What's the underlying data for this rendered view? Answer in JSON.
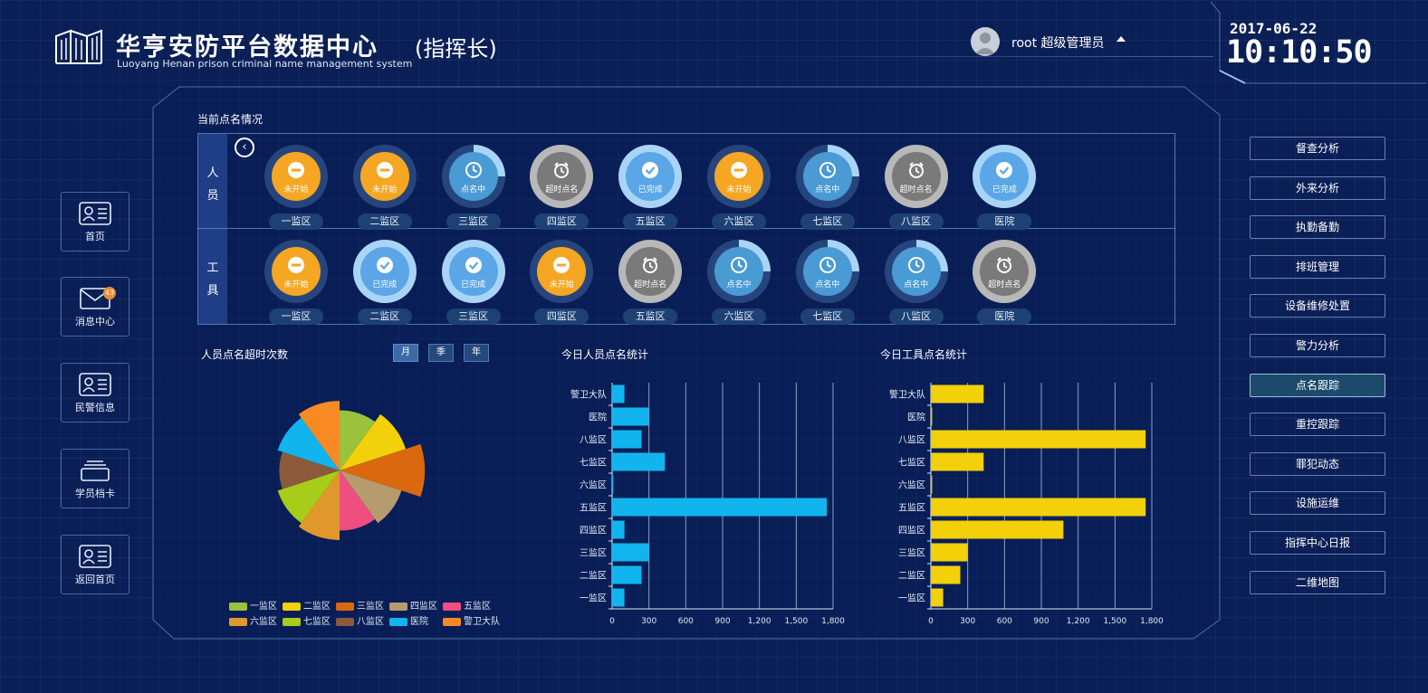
{
  "header": {
    "title": "华亨安防平台数据中心",
    "role": "(指挥长)",
    "subtitle": "Luoyang Henan prison criminal name management system",
    "user": "root 超级管理员",
    "date": "2017-06-22",
    "time": "10:10:50"
  },
  "nav": [
    {
      "label": "首页",
      "icon": "id-card-icon"
    },
    {
      "label": "消息中心",
      "icon": "mail-icon",
      "badge": "43"
    },
    {
      "label": "民警信息",
      "icon": "id-card-icon"
    },
    {
      "label": "学员档卡",
      "icon": "folder-icon"
    },
    {
      "label": "返回首页",
      "icon": "id-card-icon"
    }
  ],
  "menu": [
    "督查分析",
    "外来分析",
    "执勤备勤",
    "排班管理",
    "设备维修处置",
    "警力分析",
    "点名跟踪",
    "重控跟踪",
    "罪犯动态",
    "设施运维",
    "指挥中心日报",
    "二维地图"
  ],
  "menu_active": "点名跟踪",
  "roll_call": {
    "title": "当前点名情况",
    "rows": [
      {
        "head": [
          "人",
          "员"
        ],
        "cells": [
          {
            "area": "一监区",
            "status": "未开始",
            "state": "not_started"
          },
          {
            "area": "二监区",
            "status": "未开始",
            "state": "not_started"
          },
          {
            "area": "三监区",
            "status": "点名中",
            "state": "in_progress",
            "progress": 0.25
          },
          {
            "area": "四监区",
            "status": "超时点名",
            "state": "overtime"
          },
          {
            "area": "五监区",
            "status": "已完成",
            "state": "done"
          },
          {
            "area": "六监区",
            "status": "未开始",
            "state": "not_started"
          },
          {
            "area": "七监区",
            "status": "点名中",
            "state": "in_progress",
            "progress": 0.25
          },
          {
            "area": "八监区",
            "status": "超时点名",
            "state": "overtime"
          },
          {
            "area": "医院",
            "status": "已完成",
            "state": "done"
          }
        ]
      },
      {
        "head": [
          "工",
          "具"
        ],
        "cells": [
          {
            "area": "一监区",
            "status": "未开始",
            "state": "not_started"
          },
          {
            "area": "二监区",
            "status": "已完成",
            "state": "done"
          },
          {
            "area": "三监区",
            "status": "已完成",
            "state": "done"
          },
          {
            "area": "四监区",
            "status": "未开始",
            "state": "not_started"
          },
          {
            "area": "五监区",
            "status": "超时点名",
            "state": "overtime"
          },
          {
            "area": "六监区",
            "status": "点名中",
            "state": "in_progress",
            "progress": 0.25
          },
          {
            "area": "七监区",
            "status": "点名中",
            "state": "in_progress",
            "progress": 0.25
          },
          {
            "area": "八监区",
            "status": "点名中",
            "state": "in_progress",
            "progress": 0.25
          },
          {
            "area": "医院",
            "status": "超时点名",
            "state": "overtime"
          }
        ]
      }
    ]
  },
  "periods": [
    "月",
    "季",
    "年"
  ],
  "period_active": "月",
  "colors": {
    "not_started": "#f5a623",
    "in_progress": "#4a9ad4",
    "overtime": "#7a7a7a",
    "done": "#5aa6e6",
    "bar_personnel": "#12b4ee",
    "bar_tools": "#f2d00a"
  },
  "chart_data": [
    {
      "type": "pie",
      "subtype": "rose",
      "title": "人员点名超时次数",
      "categories": [
        "一监区",
        "二监区",
        "三监区",
        "四监区",
        "五监区",
        "六监区",
        "七监区",
        "八监区",
        "医院",
        "警卫大队"
      ],
      "values": [
        6,
        8,
        12,
        7,
        6,
        8,
        7,
        6,
        7,
        8
      ],
      "colors": [
        "#9ac23c",
        "#f2d00a",
        "#d9680f",
        "#b79a6e",
        "#ef4f7e",
        "#e0982c",
        "#a8cc1a",
        "#8a5a3a",
        "#12b4ee",
        "#f88a24"
      ],
      "legend": "bottom"
    },
    {
      "type": "bar",
      "orientation": "horizontal",
      "title": "今日人员点名统计",
      "categories": [
        "一监区",
        "二监区",
        "三监区",
        "四监区",
        "五监区",
        "六监区",
        "七监区",
        "八监区",
        "医院",
        "警卫大队"
      ],
      "values": [
        100,
        240,
        300,
        100,
        1750,
        10,
        430,
        240,
        300,
        100
      ],
      "xlim": [
        0,
        1800
      ],
      "xticks": [
        "0",
        "300",
        "600",
        "900",
        "1,200",
        "1,500",
        "1,800"
      ],
      "grid": true
    },
    {
      "type": "bar",
      "orientation": "horizontal",
      "title": "今日工具点名统计",
      "categories": [
        "一监区",
        "二监区",
        "三监区",
        "四监区",
        "五监区",
        "六监区",
        "七监区",
        "八监区",
        "医院",
        "警卫大队"
      ],
      "values": [
        100,
        240,
        300,
        1080,
        1750,
        10,
        430,
        1750,
        10,
        430
      ],
      "xlim": [
        0,
        1800
      ],
      "xticks": [
        "0",
        "300",
        "600",
        "900",
        "1,200",
        "1,500",
        "1,800"
      ],
      "grid": true
    }
  ]
}
